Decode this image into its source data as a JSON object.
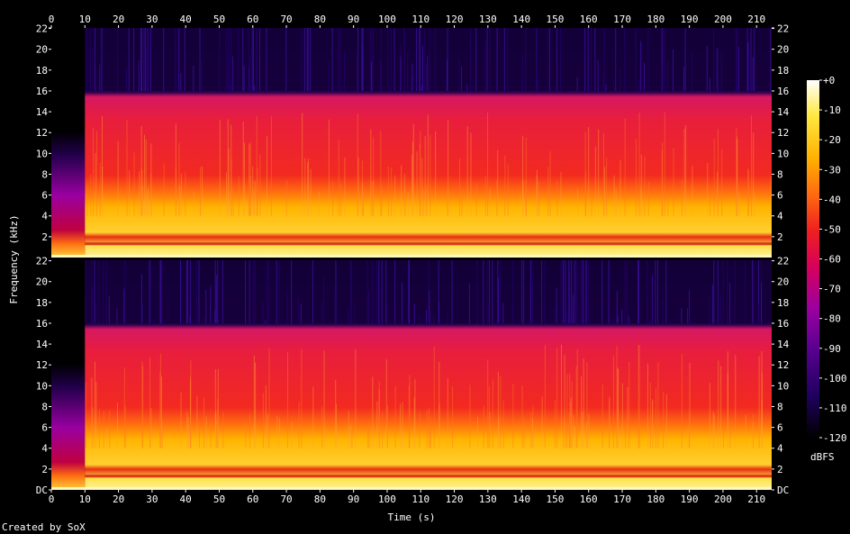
{
  "chart_data": {
    "type": "heatmap",
    "title": "",
    "xlabel": "Time (s)",
    "ylabel": "Frequency (kHz)",
    "xlim": [
      0,
      214.5
    ],
    "ylim_khz": [
      0,
      22.05
    ],
    "x_ticks": [
      0,
      10,
      20,
      30,
      40,
      50,
      60,
      70,
      80,
      90,
      100,
      110,
      120,
      130,
      140,
      150,
      160,
      170,
      180,
      190,
      200,
      210
    ],
    "y_ticks_labels": [
      "DC",
      "2",
      "4",
      "6",
      "8",
      "10",
      "12",
      "14",
      "16",
      "18",
      "20",
      "22"
    ],
    "y_ticks_values": [
      0,
      2,
      4,
      6,
      8,
      10,
      12,
      14,
      16,
      18,
      20,
      22
    ],
    "channels": 2,
    "colorbar": {
      "label": "dBFS",
      "ticks": [
        "+0",
        "-10",
        "-20",
        "-30",
        "-40",
        "-50",
        "-60",
        "-70",
        "-80",
        "-90",
        "-100",
        "-110",
        "-120"
      ],
      "range_dbfs": [
        -120,
        0
      ],
      "colormap": [
        "#000000",
        "#200060",
        "#5a0090",
        "#9a00a0",
        "#d8005a",
        "#f02020",
        "#ff6a10",
        "#ffb000",
        "#ffe840",
        "#ffffff"
      ]
    },
    "spectral_features": {
      "intro_end_s": 10,
      "lowpass_cutoff_khz": 16,
      "brightest_band_khz": [
        0,
        4
      ],
      "dark_band_khz": 1.2
    }
  },
  "footer": {
    "credit": "Created by SoX"
  }
}
